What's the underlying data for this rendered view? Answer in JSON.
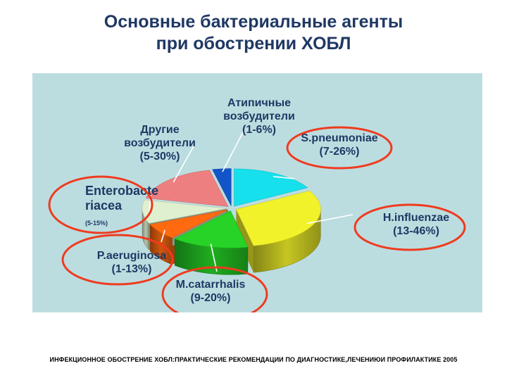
{
  "page": {
    "title_lines": [
      "Основные бактериальные агенты",
      "при обострении ХОБЛ"
    ],
    "footnote": "ИНФЕКЦИОННОЕ ОБОСТРЕНИЕ ХОБЛ:ПРАКТИЧЕСКИЕ РЕКОМЕНДАЦИИ ПО ДИАГНОСТИКЕ,ЛЕЧЕНИЮИ ПРОФИЛАКТИКЕ 2005"
  },
  "chart_data": {
    "type": "pie",
    "style": "3d-exploded",
    "background": "#bcdde0",
    "title": "Основные бактериальные агенты при обострении ХОБЛ",
    "slices": [
      {
        "key": "spn",
        "label": [
          "S.pneumoniae",
          "(7-26%)"
        ],
        "range": "7-26%",
        "value": 16.5,
        "color": "#16e0ec",
        "circled": true
      },
      {
        "key": "hinf",
        "label": [
          "H.influenzae",
          "(13-46%)"
        ],
        "range": "13-46%",
        "value": 29.5,
        "color": "#f2f22a",
        "circled": true
      },
      {
        "key": "mcat",
        "label": [
          "M.catarrhalis",
          "(9-20%)"
        ],
        "range": "9-20%",
        "value": 14.5,
        "color": "#26d326",
        "circled": true
      },
      {
        "key": "paer",
        "label": [
          "P.aeruginosa",
          "(1-13%)"
        ],
        "range": "1-13%",
        "value": 7,
        "color": "#ff6a10",
        "circled": true
      },
      {
        "key": "entero",
        "label": [
          "Enterobacte",
          "riacea",
          "(5-15%)"
        ],
        "range": "5-15%",
        "value": 10,
        "color": "#dff0cf",
        "circled": true
      },
      {
        "key": "other",
        "label": [
          "Другие",
          "возбудители",
          "(5-30%)"
        ],
        "range": "5-30%",
        "value": 17.5,
        "color": "#ee7f80",
        "circled": false
      },
      {
        "key": "atyp",
        "label": [
          "Атипичные",
          "возбудители",
          "(1-6%)"
        ],
        "range": "1-6%",
        "value": 3.5,
        "color": "#1255c8",
        "circled": false
      }
    ]
  }
}
